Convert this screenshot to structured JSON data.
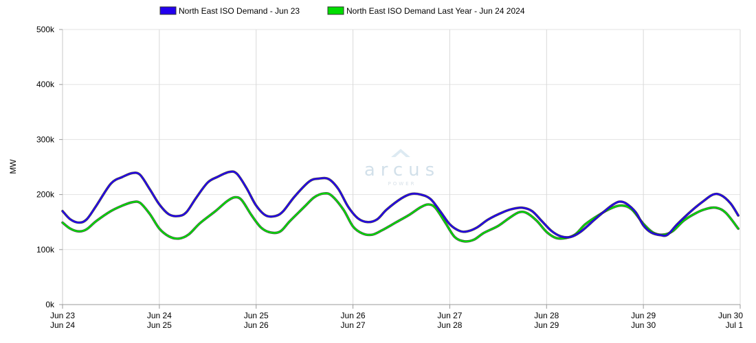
{
  "chart_data": {
    "type": "line",
    "ylabel": "MW",
    "ylim": [
      0,
      500000
    ],
    "yticks": [
      0,
      100000,
      200000,
      300000,
      400000,
      500000
    ],
    "ytick_labels": [
      "0k",
      "100k",
      "200k",
      "300k",
      "400k",
      "500k"
    ],
    "x_range": [
      0,
      7
    ],
    "xticks": [
      {
        "x": 0,
        "line1": "Jun 23",
        "line2": "Jun 24"
      },
      {
        "x": 1,
        "line1": "Jun 24",
        "line2": "Jun 25"
      },
      {
        "x": 2,
        "line1": "Jun 25",
        "line2": "Jun 26"
      },
      {
        "x": 3,
        "line1": "Jun 26",
        "line2": "Jun 27"
      },
      {
        "x": 4,
        "line1": "Jun 27",
        "line2": "Jun 28"
      },
      {
        "x": 5,
        "line1": "Jun 28",
        "line2": "Jun 29"
      },
      {
        "x": 6,
        "line1": "Jun 29",
        "line2": "Jun 30"
      },
      {
        "x": 7,
        "line1": "Jun 30",
        "line2": "Jul 1"
      }
    ],
    "legend_position": "top-center",
    "grid": true,
    "series": [
      {
        "name": "North East ISO Demand - Jun 23",
        "color": "#2200ee",
        "points": [
          [
            0,
            170000
          ],
          [
            0.08,
            155000
          ],
          [
            0.17,
            149000
          ],
          [
            0.25,
            155000
          ],
          [
            0.35,
            180000
          ],
          [
            0.5,
            220000
          ],
          [
            0.62,
            232000
          ],
          [
            0.72,
            239000
          ],
          [
            0.8,
            236000
          ],
          [
            0.9,
            210000
          ],
          [
            1.0,
            182000
          ],
          [
            1.1,
            164000
          ],
          [
            1.2,
            161000
          ],
          [
            1.28,
            168000
          ],
          [
            1.38,
            194000
          ],
          [
            1.5,
            222000
          ],
          [
            1.6,
            232000
          ],
          [
            1.72,
            241000
          ],
          [
            1.8,
            238000
          ],
          [
            1.9,
            212000
          ],
          [
            2.0,
            180000
          ],
          [
            2.1,
            162000
          ],
          [
            2.2,
            161000
          ],
          [
            2.28,
            170000
          ],
          [
            2.4,
            197000
          ],
          [
            2.55,
            224000
          ],
          [
            2.65,
            229000
          ],
          [
            2.75,
            228000
          ],
          [
            2.85,
            210000
          ],
          [
            2.95,
            178000
          ],
          [
            3.05,
            157000
          ],
          [
            3.15,
            150000
          ],
          [
            3.25,
            155000
          ],
          [
            3.35,
            173000
          ],
          [
            3.5,
            193000
          ],
          [
            3.6,
            201000
          ],
          [
            3.7,
            200000
          ],
          [
            3.8,
            192000
          ],
          [
            3.9,
            170000
          ],
          [
            4.0,
            146000
          ],
          [
            4.1,
            134000
          ],
          [
            4.18,
            133000
          ],
          [
            4.28,
            140000
          ],
          [
            4.4,
            155000
          ],
          [
            4.55,
            168000
          ],
          [
            4.65,
            174000
          ],
          [
            4.75,
            176000
          ],
          [
            4.85,
            170000
          ],
          [
            4.95,
            152000
          ],
          [
            5.05,
            134000
          ],
          [
            5.15,
            124000
          ],
          [
            5.25,
            123000
          ],
          [
            5.35,
            132000
          ],
          [
            5.5,
            155000
          ],
          [
            5.6,
            170000
          ],
          [
            5.68,
            181000
          ],
          [
            5.75,
            187000
          ],
          [
            5.82,
            184000
          ],
          [
            5.92,
            168000
          ],
          [
            6.0,
            144000
          ],
          [
            6.08,
            131000
          ],
          [
            6.18,
            126000
          ],
          [
            6.25,
            127000
          ],
          [
            6.35,
            146000
          ],
          [
            6.5,
            171000
          ],
          [
            6.62,
            188000
          ],
          [
            6.72,
            200000
          ],
          [
            6.8,
            199000
          ],
          [
            6.9,
            184000
          ],
          [
            6.98,
            162000
          ]
        ]
      },
      {
        "name": "North East ISO Demand Last Year - Jun 24 2024",
        "color": "#00dd00",
        "points": [
          [
            0,
            149000
          ],
          [
            0.08,
            138000
          ],
          [
            0.17,
            133000
          ],
          [
            0.25,
            137000
          ],
          [
            0.35,
            152000
          ],
          [
            0.5,
            170000
          ],
          [
            0.62,
            180000
          ],
          [
            0.72,
            186000
          ],
          [
            0.8,
            185000
          ],
          [
            0.9,
            165000
          ],
          [
            1.0,
            138000
          ],
          [
            1.1,
            124000
          ],
          [
            1.2,
            120000
          ],
          [
            1.3,
            127000
          ],
          [
            1.42,
            148000
          ],
          [
            1.58,
            170000
          ],
          [
            1.7,
            188000
          ],
          [
            1.78,
            195000
          ],
          [
            1.85,
            190000
          ],
          [
            1.95,
            163000
          ],
          [
            2.05,
            140000
          ],
          [
            2.15,
            131000
          ],
          [
            2.25,
            133000
          ],
          [
            2.35,
            152000
          ],
          [
            2.5,
            178000
          ],
          [
            2.6,
            195000
          ],
          [
            2.7,
            202000
          ],
          [
            2.78,
            198000
          ],
          [
            2.9,
            173000
          ],
          [
            3.0,
            142000
          ],
          [
            3.1,
            129000
          ],
          [
            3.2,
            127000
          ],
          [
            3.3,
            135000
          ],
          [
            3.45,
            150000
          ],
          [
            3.58,
            163000
          ],
          [
            3.7,
            177000
          ],
          [
            3.78,
            182000
          ],
          [
            3.85,
            176000
          ],
          [
            3.95,
            150000
          ],
          [
            4.05,
            123000
          ],
          [
            4.15,
            115000
          ],
          [
            4.25,
            118000
          ],
          [
            4.35,
            130000
          ],
          [
            4.5,
            143000
          ],
          [
            4.62,
            158000
          ],
          [
            4.72,
            168000
          ],
          [
            4.8,
            166000
          ],
          [
            4.9,
            152000
          ],
          [
            5.0,
            132000
          ],
          [
            5.1,
            121000
          ],
          [
            5.2,
            121000
          ],
          [
            5.3,
            128000
          ],
          [
            5.4,
            146000
          ],
          [
            5.55,
            164000
          ],
          [
            5.68,
            176000
          ],
          [
            5.78,
            180000
          ],
          [
            5.88,
            173000
          ],
          [
            6.0,
            147000
          ],
          [
            6.1,
            131000
          ],
          [
            6.2,
            127000
          ],
          [
            6.3,
            133000
          ],
          [
            6.42,
            153000
          ],
          [
            6.55,
            167000
          ],
          [
            6.65,
            174000
          ],
          [
            6.75,
            176000
          ],
          [
            6.85,
            167000
          ],
          [
            6.98,
            138000
          ]
        ]
      }
    ]
  }
}
